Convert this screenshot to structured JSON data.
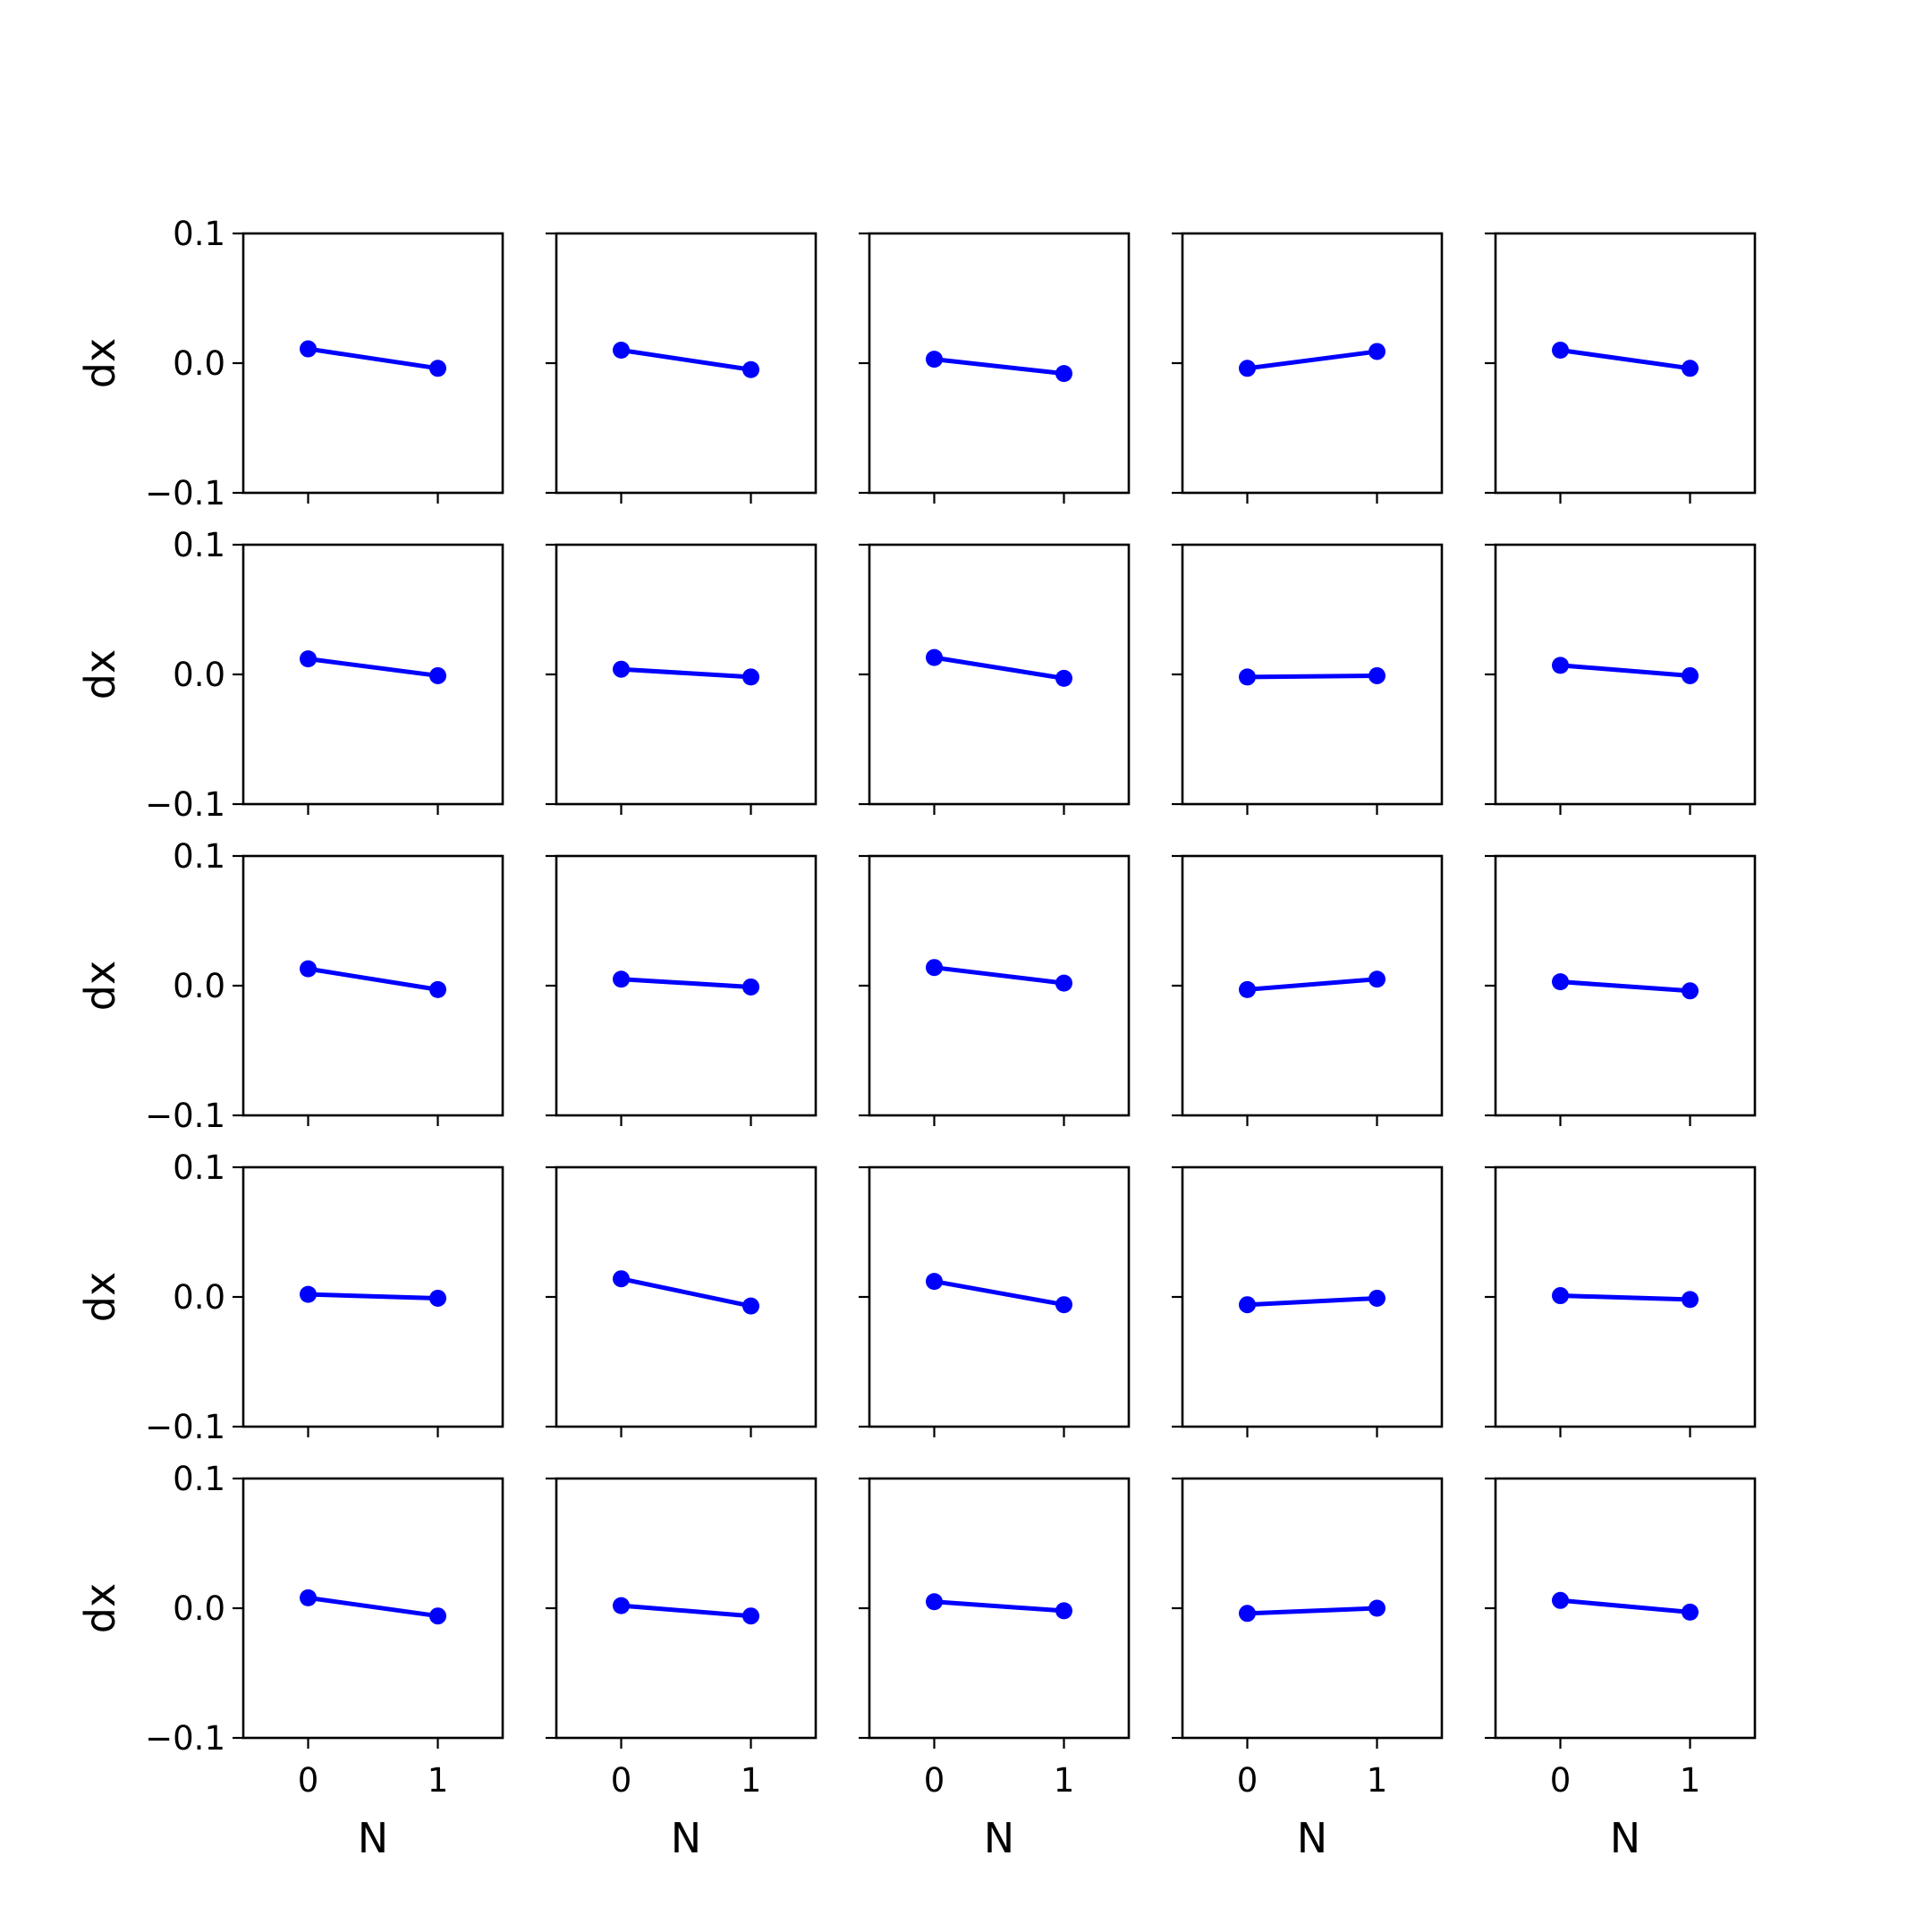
{
  "chart_data": {
    "type": "line",
    "layout": "grid",
    "rows": 5,
    "cols": 5,
    "x": [
      0,
      1
    ],
    "xlabel": "N",
    "ylabel": "dx",
    "xticks": [
      0,
      1
    ],
    "xtick_labels": [
      "0",
      "1"
    ],
    "xlim": [
      -0.5,
      1.5
    ],
    "ylim": [
      -0.1,
      0.1
    ],
    "yticks": [
      -0.1,
      0.0,
      0.1
    ],
    "ytick_labels": [
      "−0.1",
      "0.0",
      "0.1"
    ],
    "grid": false,
    "line_color": "#0000ff",
    "marker": "circle",
    "subplots": [
      {
        "values": [
          0.011,
          -0.004
        ]
      },
      {
        "values": [
          0.01,
          -0.005
        ]
      },
      {
        "values": [
          0.003,
          -0.008
        ]
      },
      {
        "values": [
          -0.004,
          0.009
        ]
      },
      {
        "values": [
          0.01,
          -0.004
        ]
      },
      {
        "values": [
          0.012,
          -0.001
        ]
      },
      {
        "values": [
          0.004,
          -0.002
        ]
      },
      {
        "values": [
          0.013,
          -0.003
        ]
      },
      {
        "values": [
          -0.002,
          -0.001
        ]
      },
      {
        "values": [
          0.007,
          -0.001
        ]
      },
      {
        "values": [
          0.013,
          -0.003
        ]
      },
      {
        "values": [
          0.005,
          -0.001
        ]
      },
      {
        "values": [
          0.014,
          0.002
        ]
      },
      {
        "values": [
          -0.003,
          0.005
        ]
      },
      {
        "values": [
          0.003,
          -0.004
        ]
      },
      {
        "values": [
          0.002,
          -0.001
        ]
      },
      {
        "values": [
          0.014,
          -0.007
        ]
      },
      {
        "values": [
          0.012,
          -0.006
        ]
      },
      {
        "values": [
          -0.006,
          -0.001
        ]
      },
      {
        "values": [
          0.001,
          -0.002
        ]
      },
      {
        "values": [
          0.008,
          -0.006
        ]
      },
      {
        "values": [
          0.002,
          -0.006
        ]
      },
      {
        "values": [
          0.005,
          -0.002
        ]
      },
      {
        "values": [
          -0.004,
          0.0
        ]
      },
      {
        "values": [
          0.006,
          -0.003
        ]
      }
    ]
  }
}
